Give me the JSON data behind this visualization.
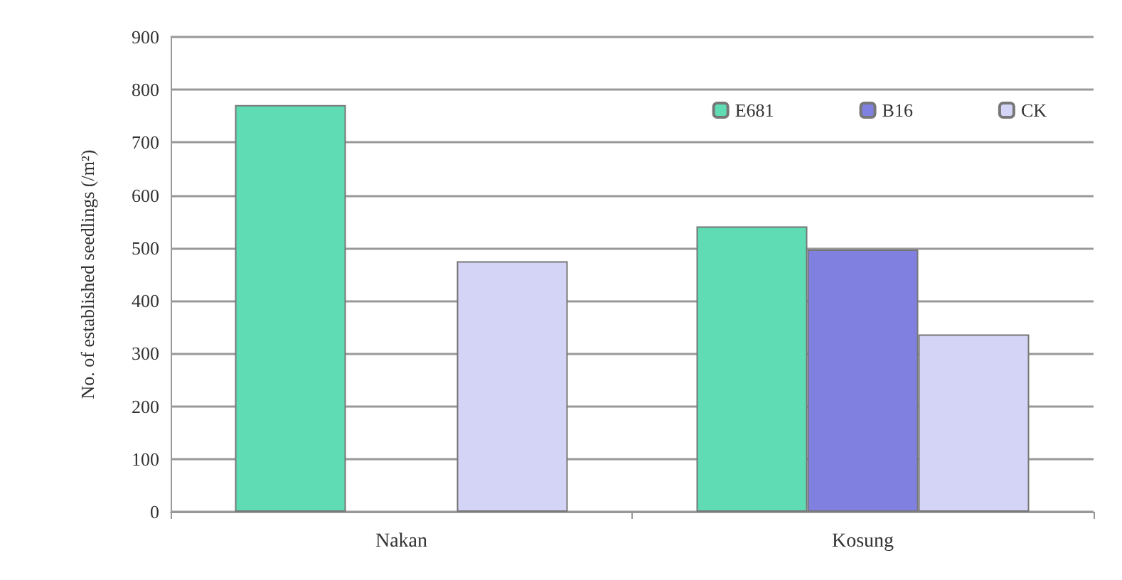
{
  "chart_data": {
    "type": "bar",
    "ylabel": "No. of established seedlings (/m²)",
    "categories": [
      "Nakan",
      "Kosung"
    ],
    "series": [
      {
        "name": "E681",
        "color": "#5fdcb4",
        "values": [
          771,
          541
        ]
      },
      {
        "name": "B16",
        "color": "#8080e0",
        "values": [
          null,
          497
        ]
      },
      {
        "name": "CK",
        "color": "#d4d4f6",
        "values": [
          475,
          336
        ]
      }
    ],
    "ylim": [
      0,
      900
    ],
    "yticks": [
      0,
      100,
      200,
      300,
      400,
      500,
      600,
      700,
      800,
      900
    ],
    "grid": "y",
    "legend": "top right"
  }
}
